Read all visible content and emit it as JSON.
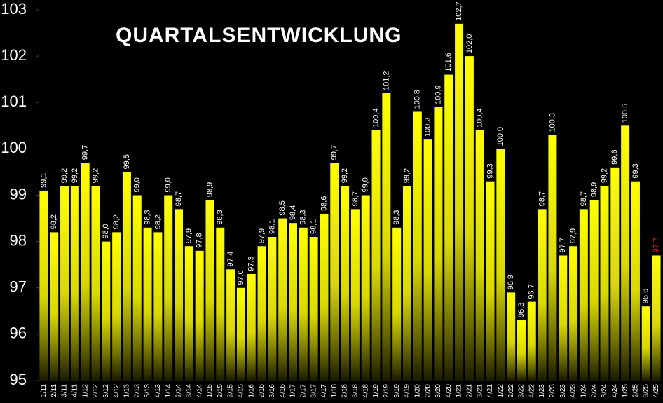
{
  "chart_data": {
    "type": "bar",
    "title": "QUARTALSENTWICKLUNG",
    "categories": [
      "1/11",
      "2/11",
      "3/11",
      "4/11",
      "1/12",
      "2/12",
      "3/12",
      "4/12",
      "1/13",
      "2/13",
      "3/13",
      "4/13",
      "1/14",
      "2/14",
      "3/14",
      "4/14",
      "1/15",
      "2/15",
      "3/15",
      "4/15",
      "1/16",
      "2/16",
      "3/16",
      "4/16",
      "1/17",
      "2/17",
      "3/17",
      "4/17",
      "1/18",
      "2/18",
      "3/18",
      "4/18",
      "1/19",
      "2/19",
      "3/19",
      "4/19",
      "1/20",
      "2/20",
      "3/20",
      "4/20",
      "1/21",
      "2/21",
      "3/21",
      "4/21",
      "1/22",
      "2/22",
      "3/22",
      "4/22",
      "1/23",
      "2/23",
      "3/23",
      "4/23",
      "1/24",
      "2/24",
      "3/24",
      "4/24",
      "1/25",
      "2/25",
      "3/25",
      "4/25"
    ],
    "values": [
      99.1,
      98.2,
      99.2,
      99.2,
      99.7,
      99.2,
      98.0,
      98.2,
      99.5,
      99.0,
      98.3,
      98.2,
      99.0,
      98.7,
      97.9,
      97.8,
      98.9,
      98.3,
      97.4,
      97.0,
      97.3,
      97.9,
      98.1,
      98.5,
      98.4,
      98.3,
      98.1,
      98.6,
      99.7,
      99.2,
      98.7,
      99.0,
      100.4,
      101.2,
      98.3,
      99.2,
      100.8,
      100.2,
      100.9,
      101.6,
      102.7,
      102.0,
      100.4,
      99.3,
      100.0,
      96.9,
      96.3,
      96.7,
      98.7,
      100.3,
      97.7,
      97.9,
      98.7,
      98.9,
      99.2,
      99.6,
      100.5,
      99.3,
      96.6,
      97.7
    ],
    "value_labels": [
      "99,1",
      "98,2",
      "99,2",
      "99,2",
      "99,7",
      "99,2",
      "98,0",
      "98,2",
      "99,5",
      "99,0",
      "98,3",
      "98,2",
      "99,0",
      "98,7",
      "97,9",
      "97,8",
      "98,9",
      "98,3",
      "97,4",
      "97,0",
      "97,3",
      "97,9",
      "98,1",
      "98,5",
      "98,4",
      "98,3",
      "98,1",
      "98,6",
      "99,7",
      "99,2",
      "98,7",
      "99,0",
      "100,4",
      "101,2",
      "98,3",
      "99,2",
      "100,8",
      "100,2",
      "100,9",
      "101,6",
      "102,7",
      "102,0",
      "100,4",
      "99,3",
      "100,0",
      "96,9",
      "96,3",
      "96,7",
      "98,7",
      "100,3",
      "97,7",
      "97,9",
      "98,7",
      "98,9",
      "99,2",
      "99,6",
      "100,5",
      "99,3",
      "96,6",
      "97,7"
    ],
    "color": "#ffff00",
    "highlight_last_label_color": "#ff1a1a",
    "ylim": [
      95,
      103
    ],
    "yticks": [
      95,
      96,
      97,
      98,
      99,
      100,
      101,
      102,
      103
    ]
  }
}
